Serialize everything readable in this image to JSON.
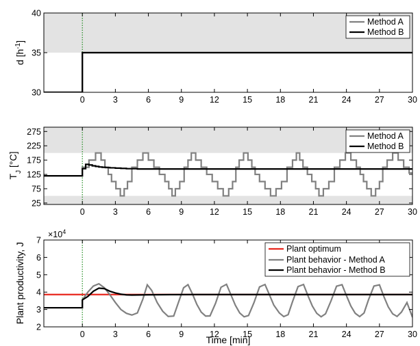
{
  "colors": {
    "method_a": "#808080",
    "method_b": "#000000",
    "optimum": "#e8261d",
    "constraint_band": "#e3e3e3",
    "event_marker": "#1e8a1e"
  },
  "chart_data": [
    {
      "type": "line",
      "ylabel_main": "d [h",
      "ylabel_sup": "-1",
      "ylabel_end": "]",
      "xlim": [
        -3.5,
        30
      ],
      "ylim": [
        30,
        40
      ],
      "x_ticks": [
        0,
        3,
        6,
        9,
        12,
        15,
        18,
        21,
        24,
        27,
        30
      ],
      "x_tick_labels": [
        "0",
        "3",
        "6",
        "9",
        "12",
        "15",
        "18",
        "21",
        "24",
        "27",
        "30"
      ],
      "y_ticks": [
        30,
        35,
        40
      ],
      "y_tick_labels": [
        "30",
        "35",
        "40"
      ],
      "shaded_band": [
        35,
        40
      ],
      "event_line_x": 0,
      "legend_position": "top-right",
      "legend": [
        "Method A",
        "Method B"
      ],
      "series": [
        {
          "name": "Method A",
          "x": [
            -3.5,
            0,
            0,
            30
          ],
          "y": [
            30,
            30,
            35,
            35
          ]
        },
        {
          "name": "Method B",
          "x": [
            -3.5,
            0,
            0,
            30
          ],
          "y": [
            30,
            30,
            35,
            35
          ]
        }
      ]
    },
    {
      "type": "line",
      "ylabel_main": "T",
      "ylabel_sub": "J",
      "ylabel_end": " [°C]",
      "xlim": [
        -3.5,
        30
      ],
      "ylim": [
        20,
        290
      ],
      "x_ticks": [
        0,
        3,
        6,
        9,
        12,
        15,
        18,
        21,
        24,
        27,
        30
      ],
      "x_tick_labels": [
        "0",
        "3",
        "6",
        "9",
        "12",
        "15",
        "18",
        "21",
        "24",
        "27",
        "30"
      ],
      "y_ticks": [
        25,
        75,
        125,
        175,
        225,
        275
      ],
      "y_tick_labels": [
        "25",
        "75",
        "125",
        "175",
        "225",
        "275"
      ],
      "shaded_bands": [
        [
          200,
          290
        ],
        [
          20,
          50
        ]
      ],
      "event_line_x": 0,
      "legend_position": "top-right",
      "legend": [
        "Method A",
        "Method B"
      ],
      "series": [
        {
          "name": "Method A",
          "x": [
            -3.5,
            0,
            0,
            0.6,
            0.6,
            1.2,
            1.2,
            1.7,
            1.7,
            2.05,
            2.05,
            2.35,
            2.35,
            2.65,
            2.65,
            3.05,
            3.05,
            3.45,
            3.45,
            3.8,
            3.8,
            4.1,
            4.1,
            4.5,
            4.5,
            5.0,
            5.0,
            5.5,
            5.5,
            6.0,
            6.0,
            6.5,
            6.5,
            7.0,
            7.0,
            7.5,
            7.5,
            7.85,
            7.85,
            8.15,
            8.15,
            8.45,
            8.45,
            8.85,
            8.85,
            9.25,
            9.25,
            9.6,
            9.6,
            9.9,
            9.9,
            10.3,
            10.3,
            10.8,
            10.8,
            11.3,
            11.3,
            11.8,
            11.8,
            12.3,
            12.3,
            12.8,
            12.8,
            13.3,
            13.3,
            13.65,
            13.65,
            13.95,
            13.95,
            14.25,
            14.25,
            14.65,
            14.65,
            15.05,
            15.05,
            15.4,
            15.4,
            15.7,
            15.7,
            16.1,
            16.1,
            16.6,
            16.6,
            17.1,
            17.1,
            17.6,
            17.6,
            18.1,
            18.1,
            18.6,
            18.6,
            19.1,
            19.1,
            19.45,
            19.45,
            19.75,
            19.75,
            20.05,
            20.05,
            20.45,
            20.45,
            20.85,
            20.85,
            21.2,
            21.2,
            21.5,
            21.5,
            21.9,
            21.9,
            22.4,
            22.4,
            22.9,
            22.9,
            23.4,
            23.4,
            23.9,
            23.9,
            24.4,
            24.4,
            24.9,
            24.9,
            25.25,
            25.25,
            25.55,
            25.55,
            25.85,
            25.85,
            26.25,
            26.25,
            26.65,
            26.65,
            27.0,
            27.0,
            27.3,
            27.3,
            27.7,
            27.7,
            28.2,
            28.2,
            28.7,
            28.7,
            29.2,
            29.2,
            29.7,
            29.7,
            30
          ],
          "y": [
            120,
            120,
            150,
            150,
            175,
            175,
            200,
            200,
            175,
            175,
            150,
            150,
            125,
            125,
            100,
            100,
            75,
            75,
            50,
            50,
            75,
            75,
            100,
            100,
            150,
            150,
            175,
            175,
            200,
            200,
            175,
            175,
            150,
            150,
            125,
            125,
            100,
            100,
            75,
            75,
            50,
            50,
            75,
            75,
            100,
            100,
            150,
            150,
            175,
            175,
            200,
            200,
            175,
            175,
            150,
            150,
            125,
            125,
            100,
            100,
            75,
            75,
            50,
            50,
            75,
            75,
            100,
            100,
            150,
            150,
            175,
            175,
            200,
            200,
            175,
            175,
            150,
            150,
            125,
            125,
            100,
            100,
            75,
            75,
            50,
            50,
            75,
            75,
            100,
            100,
            150,
            150,
            175,
            175,
            200,
            200,
            175,
            175,
            150,
            150,
            125,
            125,
            100,
            100,
            75,
            75,
            50,
            50,
            75,
            75,
            100,
            100,
            150,
            150,
            175,
            175,
            200,
            200,
            175,
            175,
            150,
            150,
            125,
            125,
            100,
            100,
            75,
            75,
            50,
            50,
            75,
            75,
            100,
            100,
            150,
            150,
            175,
            175,
            200,
            200,
            175,
            175,
            150,
            150,
            130,
            130
          ]
        },
        {
          "name": "Method B",
          "x": [
            -3.5,
            0,
            0,
            0.3,
            0.3,
            0.6,
            0.6,
            0.9,
            0.9,
            1.2,
            1.2,
            1.5,
            1.5,
            1.8,
            1.8,
            2.1,
            2.1,
            2.5,
            2.5,
            3.0,
            3.0,
            3.5,
            3.5,
            4.0,
            4.0,
            5.0,
            5.0,
            30
          ],
          "y": [
            120,
            120,
            145,
            145,
            160,
            160,
            158,
            158,
            155,
            155,
            153,
            153,
            151,
            151,
            150,
            150,
            149,
            149,
            148,
            148,
            147,
            147,
            146,
            146,
            145,
            145,
            144,
            144
          ]
        }
      ]
    },
    {
      "type": "line",
      "ylabel_main": "Plant productivity, J",
      "exponent_base": "×10",
      "exponent_power": "4",
      "xlabel": "Time [min]",
      "xlim": [
        -3.5,
        30
      ],
      "ylim": [
        20000,
        70000
      ],
      "x_ticks": [
        0,
        3,
        6,
        9,
        12,
        15,
        18,
        21,
        24,
        27,
        30
      ],
      "x_tick_labels": [
        "0",
        "3",
        "6",
        "9",
        "12",
        "15",
        "18",
        "21",
        "24",
        "27",
        "30"
      ],
      "y_ticks": [
        20000,
        30000,
        40000,
        50000,
        60000,
        70000
      ],
      "y_tick_labels": [
        "2",
        "3",
        "4",
        "5",
        "6",
        "7"
      ],
      "event_line_x": 0,
      "legend_position": "top-right",
      "legend": [
        "Plant optimum",
        "Plant behavior - Method A",
        "Plant behavior - Method B"
      ],
      "series": [
        {
          "name": "Plant optimum",
          "x": [
            -3.5,
            30
          ],
          "y": [
            38600,
            38600
          ]
        },
        {
          "name": "Plant behavior - Method A",
          "x": [
            -3.5,
            0,
            0,
            0.5,
            1.0,
            1.5,
            2.0,
            2.5,
            3.0,
            3.5,
            4.0,
            4.5,
            5.0,
            5.5,
            5.9,
            6.3,
            6.8,
            7.3,
            7.8,
            8.3,
            8.7,
            9.2,
            9.6,
            10.0,
            10.4,
            10.8,
            11.2,
            11.6,
            12.1,
            12.6,
            13.1,
            13.5,
            13.9,
            14.3,
            14.7,
            15.1,
            15.6,
            16.1,
            16.6,
            17.0,
            17.4,
            17.9,
            18.3,
            18.7,
            19.1,
            19.6,
            20.1,
            20.5,
            20.9,
            21.3,
            21.7,
            22.1,
            22.6,
            23.1,
            23.6,
            24.0,
            24.4,
            24.8,
            25.2,
            25.6,
            26.0,
            26.5,
            27.0,
            27.4,
            27.8,
            28.2,
            28.6,
            29.0,
            29.5,
            30
          ],
          "y": [
            31000,
            31000,
            35500,
            40000,
            43500,
            44800,
            42500,
            38500,
            34000,
            30000,
            27800,
            26800,
            28000,
            36000,
            44200,
            41000,
            34000,
            29000,
            26000,
            26200,
            33500,
            42500,
            44300,
            39000,
            33000,
            28500,
            26200,
            26300,
            33500,
            42800,
            44500,
            38500,
            32500,
            28000,
            25800,
            26500,
            34000,
            43000,
            44400,
            38500,
            32500,
            28000,
            25900,
            27000,
            34500,
            43200,
            44400,
            38000,
            32000,
            27800,
            25800,
            27500,
            35000,
            43400,
            44300,
            38000,
            32000,
            27800,
            25900,
            28000,
            35500,
            43500,
            44200,
            37500,
            31500,
            27500,
            26000,
            28500,
            34000,
            25500
          ]
        },
        {
          "name": "Plant behavior - Method B",
          "x": [
            -3.5,
            0,
            0,
            0.5,
            1.0,
            1.5,
            2.0,
            2.5,
            3.0,
            3.5,
            4.0,
            4.5,
            5.0,
            6.0,
            7.0,
            8.0,
            10.0,
            30
          ],
          "y": [
            31000,
            31000,
            35500,
            37500,
            40500,
            42300,
            42000,
            40500,
            39500,
            38800,
            38400,
            38300,
            38350,
            38450,
            38500,
            38550,
            38600,
            38600
          ]
        }
      ]
    }
  ]
}
